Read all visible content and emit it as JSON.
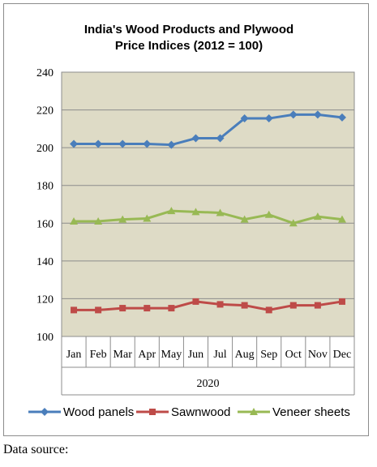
{
  "chart_data": {
    "type": "line",
    "title_line1": "India's Wood Products and Plywood",
    "title_line2": "Price Indices (2012 = 100)",
    "categories": [
      "Jan",
      "Feb",
      "Mar",
      "Apr",
      "May",
      "Jun",
      "Jul",
      "Aug",
      "Sep",
      "Oct",
      "Nov",
      "Dec"
    ],
    "year_label": "2020",
    "ylim": [
      100,
      240
    ],
    "yticks": [
      100,
      120,
      140,
      160,
      180,
      200,
      220,
      240
    ],
    "grid": true,
    "legend_position": "bottom",
    "plot_background": "#dedbc6",
    "series": [
      {
        "name": "Wood panels",
        "color": "#4a7ebb",
        "marker": "diamond",
        "values": [
          202,
          202,
          202,
          202,
          201.5,
          205,
          205,
          215.5,
          215.5,
          217.5,
          217.5,
          216
        ]
      },
      {
        "name": "Sawnwood",
        "color": "#be4b48",
        "marker": "square",
        "values": [
          114,
          114,
          115,
          115,
          115,
          118.5,
          117,
          116.5,
          114,
          116.5,
          116.5,
          118.5
        ]
      },
      {
        "name": "Veneer sheets",
        "color": "#98b954",
        "marker": "triangle",
        "values": [
          161,
          161,
          162,
          162.5,
          166.5,
          166,
          165.5,
          162,
          164.5,
          160,
          163.5,
          162
        ]
      }
    ]
  },
  "footer": {
    "data_source": "Data source:"
  }
}
